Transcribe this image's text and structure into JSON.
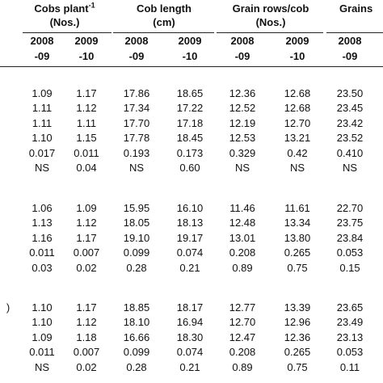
{
  "header": {
    "groups": [
      {
        "title": "Cobs plant",
        "sup": "-1",
        "unit": "(Nos.)"
      },
      {
        "title": "Cob length",
        "unit": "(cm)"
      },
      {
        "title": "Grain rows/cob",
        "unit": "(Nos.)"
      },
      {
        "title": "Grains"
      }
    ],
    "years": [
      [
        "2008",
        "2009",
        "2008",
        "2009",
        "2008",
        "2009",
        "2008"
      ],
      [
        "-09",
        "-10",
        "-09",
        "-10",
        "-09",
        "-10",
        "-09"
      ]
    ]
  },
  "blocks": [
    {
      "rows": [
        [
          "1.09",
          "1.17",
          "17.86",
          "18.65",
          "12.36",
          "12.68",
          "23.50"
        ],
        [
          "1.11",
          "1.12",
          "17.34",
          "17.22",
          "12.52",
          "12.68",
          "23.45"
        ],
        [
          "1.11",
          "1.11",
          "17.70",
          "17.18",
          "12.19",
          "12.70",
          "23.42"
        ],
        [
          "1.10",
          "1.15",
          "17.78",
          "18.45",
          "12.53",
          "13.21",
          "23.52"
        ],
        [
          "0.017",
          "0.011",
          "0.193",
          "0.173",
          "0.329",
          "0.42",
          "0.410"
        ],
        [
          "NS",
          "0.04",
          "NS",
          "0.60",
          "NS",
          "NS",
          "NS"
        ]
      ]
    },
    {
      "rows": [
        [
          "1.06",
          "1.09",
          "15.95",
          "16.10",
          "11.46",
          "11.61",
          "22.70"
        ],
        [
          "1.13",
          "1.12",
          "18.05",
          "18.13",
          "12.48",
          "13.34",
          "23.75"
        ],
        [
          "1.16",
          "1.17",
          "19.10",
          "19.17",
          "13.01",
          "13.80",
          "23.84"
        ],
        [
          "0.011",
          "0.007",
          "0.099",
          "0.074",
          "0.208",
          "0.265",
          "0.053"
        ],
        [
          "0.03",
          "0.02",
          "0.28",
          "0.21",
          "0.89",
          "0.75",
          "0.15"
        ]
      ]
    },
    {
      "label": ")",
      "rows": [
        [
          "1.10",
          "1.17",
          "18.85",
          "18.17",
          "12.77",
          "13.39",
          "23.65"
        ],
        [
          "1.10",
          "1.12",
          "18.10",
          "16.94",
          "12.70",
          "12.96",
          "23.49"
        ],
        [
          "1.09",
          "1.18",
          "16.66",
          "18.30",
          "12.47",
          "12.36",
          "23.13"
        ],
        [
          "0.011",
          "0.007",
          "0.099",
          "0.074",
          "0.208",
          "0.265",
          "0.053"
        ],
        [
          "NS",
          "0.02",
          "0.28",
          "0.21",
          "0.89",
          "0.75",
          "0.11"
        ]
      ]
    }
  ]
}
